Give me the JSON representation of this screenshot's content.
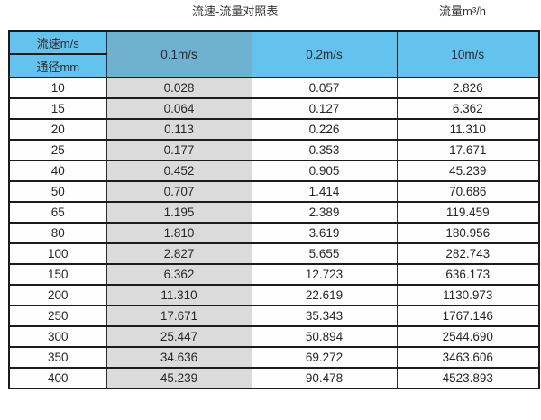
{
  "titles": {
    "main": "流速-流量对照表",
    "unit": "流量m³/h"
  },
  "colors": {
    "header_blue": "#63c3ee",
    "header_steel_blue": "#6fb1cf",
    "column_gray": "#dbdbdb",
    "border": "#1c1c1c"
  },
  "chart_data": {
    "type": "table",
    "title": "流速-流量对照表",
    "flow_unit_label": "流量m³/h",
    "corner_top_label": "流速m/s",
    "corner_bottom_label": "通径mm",
    "velocity_columns": [
      "0.1m/s",
      "0.2m/s",
      "10m/s"
    ],
    "rows": [
      {
        "diameter_mm": "10",
        "values": [
          "0.028",
          "0.057",
          "2.826"
        ]
      },
      {
        "diameter_mm": "15",
        "values": [
          "0.064",
          "0.127",
          "6.362"
        ]
      },
      {
        "diameter_mm": "20",
        "values": [
          "0.113",
          "0.226",
          "11.310"
        ]
      },
      {
        "diameter_mm": "25",
        "values": [
          "0.177",
          "0.353",
          "17.671"
        ]
      },
      {
        "diameter_mm": "40",
        "values": [
          "0.452",
          "0.905",
          "45.239"
        ]
      },
      {
        "diameter_mm": "50",
        "values": [
          "0.707",
          "1.414",
          "70.686"
        ]
      },
      {
        "diameter_mm": "65",
        "values": [
          "1.195",
          "2.389",
          "119.459"
        ]
      },
      {
        "diameter_mm": "80",
        "values": [
          "1.810",
          "3.619",
          "180.956"
        ]
      },
      {
        "diameter_mm": "100",
        "values": [
          "2.827",
          "5.655",
          "282.743"
        ]
      },
      {
        "diameter_mm": "150",
        "values": [
          "6.362",
          "12.723",
          "636.173"
        ]
      },
      {
        "diameter_mm": "200",
        "values": [
          "11.310",
          "22.619",
          "1130.973"
        ]
      },
      {
        "diameter_mm": "250",
        "values": [
          "17.671",
          "35.343",
          "1767.146"
        ]
      },
      {
        "diameter_mm": "300",
        "values": [
          "25.447",
          "50.894",
          "2544.690"
        ]
      },
      {
        "diameter_mm": "350",
        "values": [
          "34.636",
          "69.272",
          "3463.606"
        ]
      },
      {
        "diameter_mm": "400",
        "values": [
          "45.239",
          "90.478",
          "4523.893"
        ]
      }
    ]
  }
}
